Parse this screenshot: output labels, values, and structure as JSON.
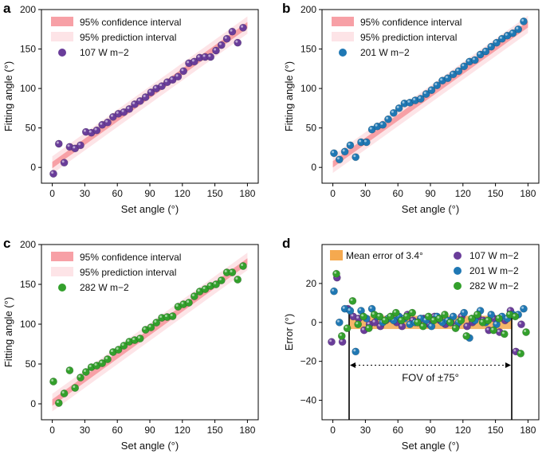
{
  "chart_data": [
    {
      "type": "scatter",
      "panel_label": "a",
      "xlabel": "Set angle (°)",
      "ylabel": "Fitting angle (°)",
      "xlim": [
        -10,
        190
      ],
      "ylim": [
        -20,
        200
      ],
      "xticks": [
        0,
        30,
        60,
        90,
        120,
        150,
        180
      ],
      "yticks": [
        0,
        50,
        100,
        150,
        200
      ],
      "legend": {
        "placement": "top-left",
        "ci_label": "95% confidence interval",
        "pi_label": "95% prediction interval",
        "series_label": "107 W m−2"
      },
      "fit": {
        "slope": 0.985,
        "intercept": 3.0,
        "x_range": [
          0,
          180
        ],
        "ci_halfwidth": 4,
        "pi_halfwidth": 11
      },
      "colors": {
        "marker": "#6a3d9a",
        "ci": "#f7a0a6",
        "pi": "#fde4e7"
      },
      "x": [
        1,
        6,
        11,
        16,
        21,
        26,
        31,
        36,
        41,
        46,
        51,
        56,
        61,
        66,
        71,
        76,
        81,
        86,
        91,
        96,
        101,
        106,
        111,
        116,
        121,
        126,
        131,
        136,
        141,
        146,
        151,
        156,
        161,
        166,
        171,
        176
      ],
      "y": [
        -8,
        30,
        6,
        26,
        24,
        28,
        45,
        44,
        47,
        54,
        57,
        64,
        68,
        70,
        74,
        80,
        84,
        89,
        95,
        100,
        103,
        108,
        111,
        115,
        122,
        132,
        134,
        139,
        140,
        140,
        148,
        155,
        163,
        172,
        158,
        177
      ]
    },
    {
      "type": "scatter",
      "panel_label": "b",
      "xlabel": "Set angle (°)",
      "ylabel": "Fitting angle (°)",
      "xlim": [
        -10,
        190
      ],
      "ylim": [
        -20,
        200
      ],
      "xticks": [
        0,
        30,
        60,
        90,
        120,
        150,
        180
      ],
      "yticks": [
        0,
        50,
        100,
        150,
        200
      ],
      "legend": {
        "placement": "top-left",
        "ci_label": "95% confidence interval",
        "pi_label": "95% prediction interval",
        "series_label": "201 W m−2"
      },
      "fit": {
        "slope": 0.985,
        "intercept": 4.0,
        "x_range": [
          0,
          180
        ],
        "ci_halfwidth": 4,
        "pi_halfwidth": 11
      },
      "colors": {
        "marker": "#1f78b4",
        "ci": "#f7a0a6",
        "pi": "#fde4e7"
      },
      "x": [
        1,
        6,
        11,
        16,
        21,
        26,
        31,
        36,
        41,
        46,
        51,
        56,
        61,
        66,
        71,
        76,
        81,
        86,
        91,
        96,
        101,
        106,
        111,
        116,
        121,
        126,
        131,
        136,
        141,
        146,
        151,
        156,
        161,
        166,
        171,
        176
      ],
      "y": [
        18,
        10,
        20,
        28,
        13,
        32,
        32,
        48,
        52,
        54,
        61,
        69,
        75,
        81,
        82,
        85,
        87,
        93,
        98,
        104,
        110,
        113,
        118,
        122,
        128,
        134,
        136,
        143,
        147,
        153,
        158,
        163,
        167,
        170,
        175,
        185
      ]
    },
    {
      "type": "scatter",
      "panel_label": "c",
      "xlabel": "Set angle (°)",
      "ylabel": "Fitting angle (°)",
      "xlim": [
        -10,
        190
      ],
      "ylim": [
        -20,
        200
      ],
      "xticks": [
        0,
        30,
        60,
        90,
        120,
        150,
        180
      ],
      "yticks": [
        0,
        50,
        100,
        150,
        200
      ],
      "legend": {
        "placement": "top-left",
        "ci_label": "95% confidence interval",
        "pi_label": "95% prediction interval",
        "series_label": "282 W m−2"
      },
      "fit": {
        "slope": 0.985,
        "intercept": 1.5,
        "x_range": [
          0,
          180
        ],
        "ci_halfwidth": 4,
        "pi_halfwidth": 11
      },
      "colors": {
        "marker": "#33a02c",
        "ci": "#f7a0a6",
        "pi": "#fde4e7"
      },
      "x": [
        1,
        6,
        11,
        16,
        21,
        26,
        31,
        36,
        41,
        46,
        51,
        56,
        61,
        66,
        71,
        76,
        81,
        86,
        91,
        96,
        101,
        106,
        111,
        116,
        121,
        126,
        131,
        136,
        141,
        146,
        151,
        156,
        161,
        166,
        171,
        176
      ],
      "y": [
        28,
        1,
        13,
        42,
        20,
        33,
        40,
        46,
        48,
        51,
        56,
        65,
        68,
        73,
        78,
        80,
        82,
        93,
        96,
        102,
        108,
        109,
        110,
        122,
        125,
        127,
        135,
        141,
        144,
        148,
        150,
        155,
        165,
        165,
        156,
        173
      ]
    },
    {
      "type": "scatter",
      "panel_label": "d",
      "xlabel": "Set angle (°)",
      "ylabel": "Error (°)",
      "xlim": [
        -10,
        190
      ],
      "ylim": [
        -50,
        40
      ],
      "xticks": [
        0,
        30,
        60,
        90,
        120,
        150,
        180
      ],
      "yticks": [
        -40,
        -20,
        0,
        20
      ],
      "mean_error_band": {
        "label": "Mean error of 3.4°",
        "value": 3.4,
        "x_range": [
          15,
          165
        ],
        "color": "#f5a94f"
      },
      "fov": {
        "label": "FOV of ±75°",
        "x_start": 15,
        "x_end": 165,
        "y": -22
      },
      "legend": {
        "placement": "top-right"
      },
      "series": [
        {
          "name": "107 W m−2",
          "color": "#6a3d9a",
          "x": [
            1,
            6,
            11,
            16,
            21,
            26,
            31,
            36,
            41,
            46,
            51,
            56,
            61,
            66,
            71,
            76,
            81,
            86,
            91,
            96,
            101,
            106,
            111,
            116,
            121,
            126,
            131,
            136,
            141,
            146,
            151,
            156,
            161,
            166,
            171,
            176
          ],
          "y": [
            -10,
            23,
            -10,
            7,
            3,
            2,
            -4,
            -1,
            0,
            -2,
            1,
            2,
            0,
            -2,
            4,
            1,
            0,
            2,
            -1,
            3,
            1,
            -1,
            0,
            -2,
            3,
            -2,
            0,
            3,
            1,
            -4,
            2,
            -5,
            1,
            6,
            -15,
            -1
          ]
        },
        {
          "name": "201 W m−2",
          "color": "#1f78b4",
          "x": [
            1,
            6,
            11,
            16,
            21,
            26,
            31,
            36,
            41,
            46,
            51,
            56,
            61,
            66,
            71,
            76,
            81,
            86,
            91,
            96,
            101,
            106,
            111,
            116,
            121,
            126,
            131,
            136,
            141,
            146,
            151,
            156,
            161,
            166,
            171,
            176
          ],
          "y": [
            16,
            0,
            7,
            6,
            -15,
            6,
            2,
            7,
            3,
            0,
            2,
            1,
            3,
            2,
            -1,
            0,
            2,
            1,
            -2,
            3,
            0,
            1,
            3,
            0,
            5,
            -8,
            1,
            6,
            0,
            4,
            -1,
            3,
            2,
            4,
            4,
            7
          ]
        },
        {
          "name": "282 W m−2",
          "color": "#33a02c",
          "x": [
            1,
            6,
            11,
            16,
            21,
            26,
            31,
            36,
            41,
            46,
            51,
            56,
            61,
            66,
            71,
            76,
            81,
            86,
            91,
            96,
            101,
            106,
            111,
            116,
            121,
            126,
            131,
            136,
            141,
            146,
            151,
            156,
            161,
            166,
            171,
            176
          ],
          "y": [
            25,
            -7,
            -3,
            11,
            -1,
            3,
            -3,
            4,
            3,
            1,
            3,
            5,
            1,
            3,
            5,
            0,
            -2,
            3,
            1,
            2,
            4,
            0,
            -3,
            1,
            -7,
            2,
            4,
            0,
            1,
            -4,
            2,
            -6,
            4,
            3,
            -16,
            -5
          ]
        }
      ]
    }
  ]
}
